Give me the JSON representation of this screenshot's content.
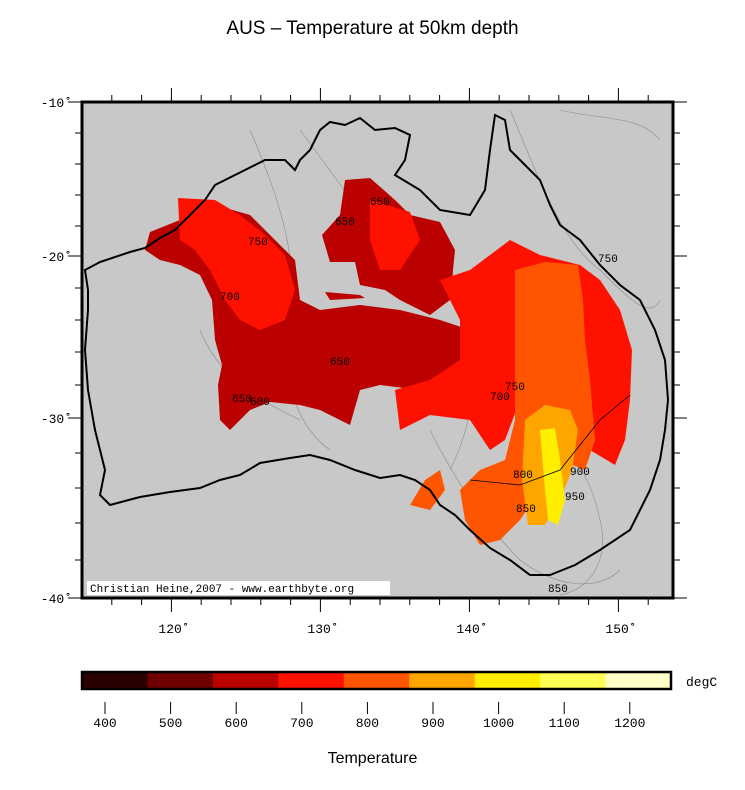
{
  "title": "AUS – Temperature at 50km depth",
  "credit": "Christian Heine,2007 - www.earthbyte.org",
  "map": {
    "background_color": "#c8c8c8",
    "lat_ticks": [
      "-10˚",
      "-20˚",
      "-30˚",
      "-40˚"
    ],
    "lon_ticks": [
      "120˚",
      "130˚",
      "140˚",
      "150˚"
    ],
    "contour_labels": [
      "650",
      "650",
      "650",
      "750",
      "700",
      "750",
      "750",
      "700",
      "800",
      "850",
      "900",
      "950",
      "850",
      "600",
      "650"
    ]
  },
  "colorbar": {
    "unit": "degC",
    "colors": [
      "#2a0000",
      "#6e0000",
      "#bb0000",
      "#ff1100",
      "#ff5500",
      "#ffa500",
      "#ffee00",
      "#ffff55",
      "#ffffc8"
    ],
    "ticks": [
      "400",
      "500",
      "600",
      "700",
      "800",
      "900",
      "1000",
      "1100",
      "1200"
    ],
    "label": "Temperature"
  }
}
